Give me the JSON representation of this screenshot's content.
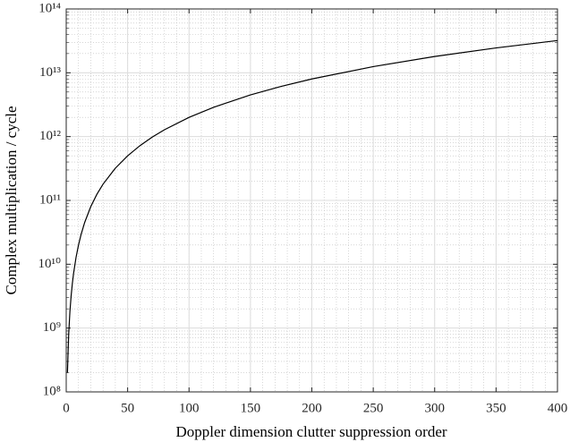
{
  "chart_data": {
    "type": "line",
    "x_label": "Doppler dimension clutter suppression order",
    "y_label": "Complex multiplication / cycle",
    "x": [
      1,
      2,
      3,
      4,
      5,
      6,
      8,
      10,
      12,
      15,
      20,
      25,
      30,
      40,
      50,
      60,
      70,
      80,
      100,
      120,
      150,
      175,
      200,
      250,
      300,
      350,
      400
    ],
    "values": [
      200000000,
      800000000,
      1800000000,
      3200000000,
      5000000000,
      7200000000,
      12800000000,
      20000000000,
      28800000000,
      45000000000,
      80000000000,
      125000000000,
      180000000000,
      320000000000,
      500000000000,
      720000000000,
      980000000000,
      1280000000000,
      2000000000000,
      2880000000000,
      4500000000000,
      6125000000000,
      8000000000000,
      12500000000000,
      18000000000000,
      24500000000000,
      32000000000000
    ],
    "color": "#000000",
    "xlim": [
      0,
      400
    ],
    "xticks": [
      0,
      50,
      100,
      150,
      200,
      250,
      300,
      350,
      400
    ],
    "ylim": [
      100000000,
      100000000000000
    ],
    "yticks": [
      {
        "value": 100000000,
        "label": "10⁸"
      },
      {
        "value": 1000000000,
        "label": "10⁹"
      },
      {
        "value": 10000000000,
        "label": "10¹⁰"
      },
      {
        "value": 100000000000,
        "label": "10¹¹"
      },
      {
        "value": 1000000000000,
        "label": "10¹²"
      },
      {
        "value": 10000000000000,
        "label": "10¹³"
      },
      {
        "value": 100000000000000,
        "label": "10¹⁴"
      }
    ],
    "y_scale": "log",
    "grid": true,
    "minor_grid": true
  }
}
